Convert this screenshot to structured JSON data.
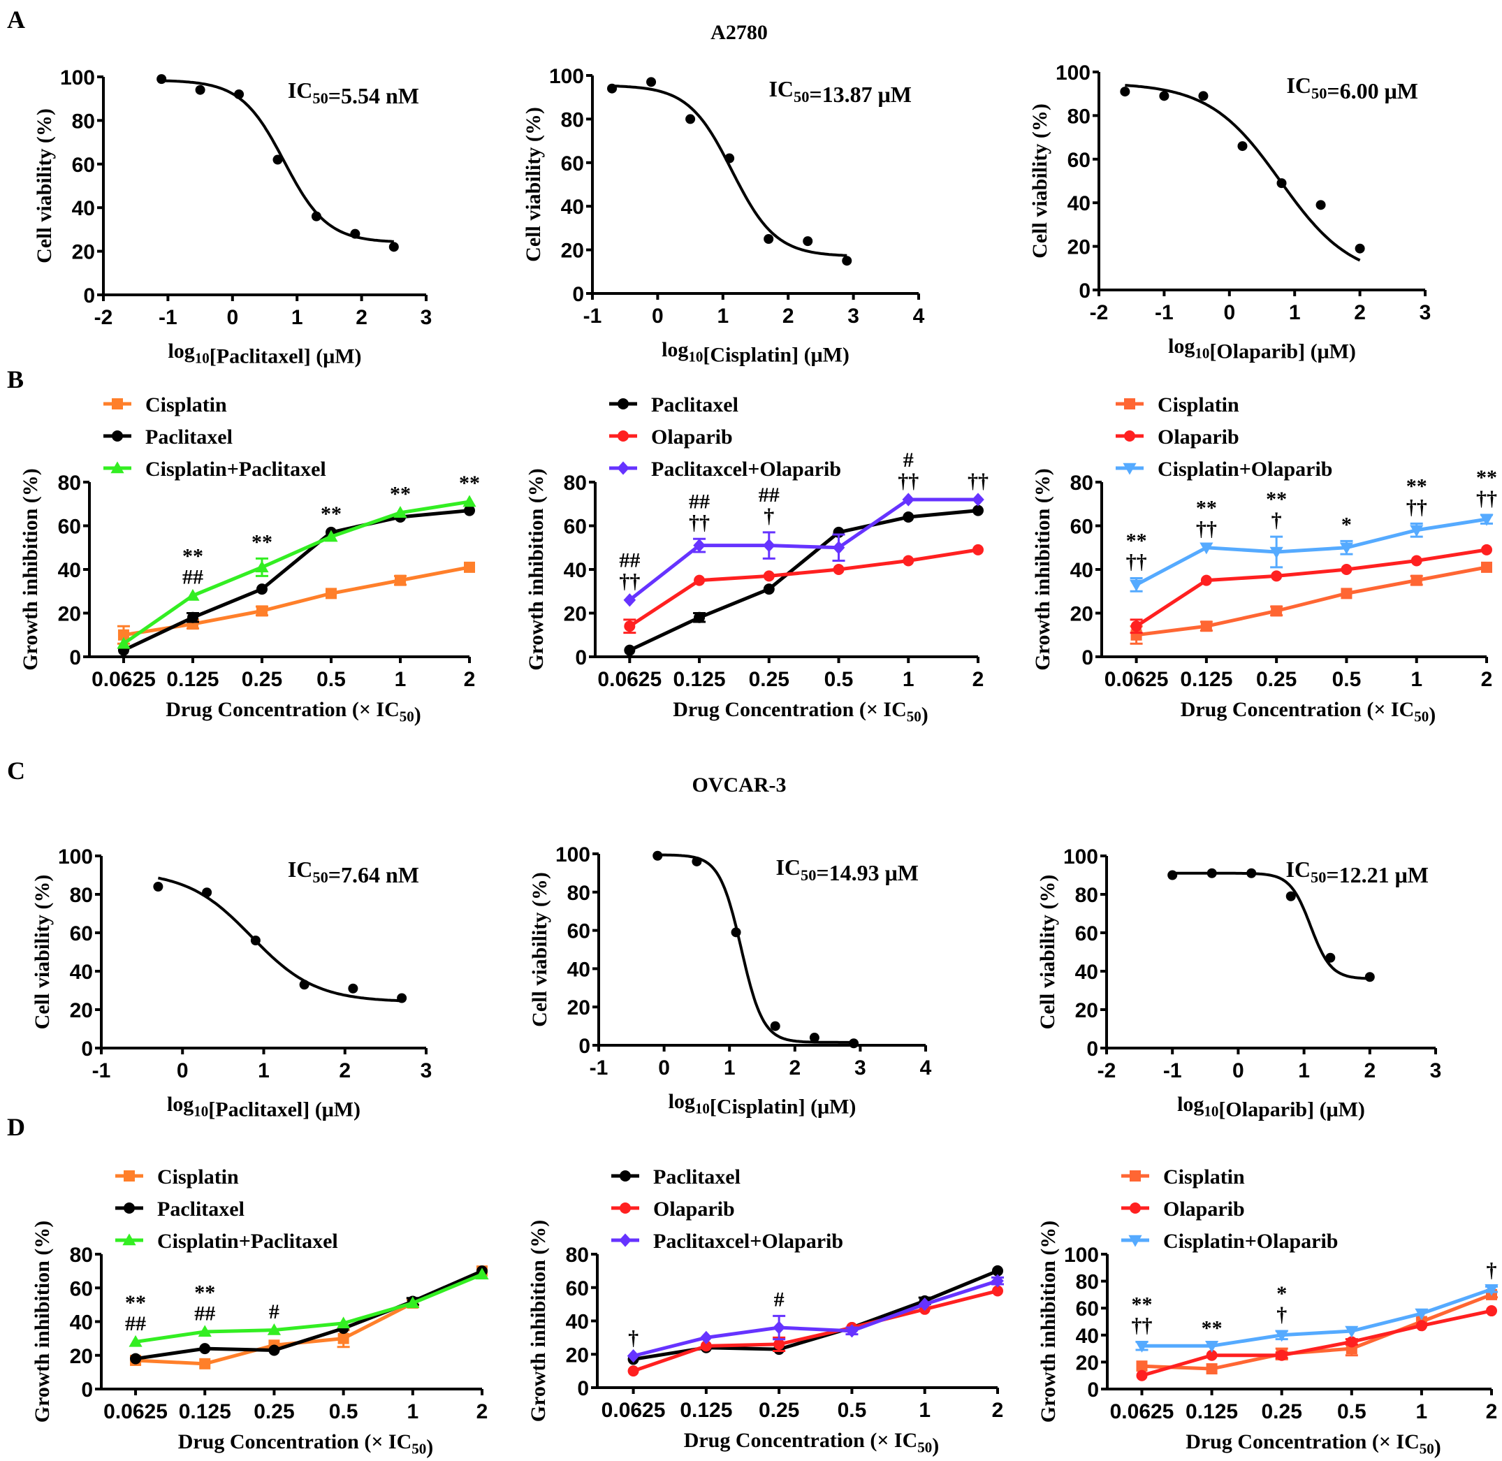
{
  "figure": {
    "panel_labels": [
      "A",
      "B",
      "C",
      "D"
    ],
    "row_titles": {
      "A": "A2780",
      "C": "OVCAR-3"
    }
  },
  "chart_data": [
    {
      "id": "A1",
      "panel": "A",
      "type": "scatter",
      "fit": "sigmoid",
      "title": "",
      "xlabel": "log10[Paclitaxel] (μM)",
      "ylabel": "Cell viability (%)",
      "xlim": [
        -2,
        3
      ],
      "ylim": [
        0,
        100
      ],
      "xticks": [
        -2,
        -1,
        0,
        1,
        2,
        3
      ],
      "yticks": [
        0,
        20,
        40,
        60,
        80,
        100
      ],
      "annotation": "IC50=5.54 nM",
      "x": [
        -1.1,
        -0.5,
        0.1,
        0.7,
        1.3,
        1.9,
        2.5
      ],
      "y": [
        99,
        94,
        92,
        62,
        36,
        28,
        22
      ],
      "curve": {
        "top": 98.5,
        "bottom": 24,
        "logx50": 0.8,
        "hill": 1.3
      }
    },
    {
      "id": "A2",
      "panel": "A",
      "type": "scatter",
      "fit": "sigmoid",
      "xlabel": "log10[Cisplatin] (μM)",
      "ylabel": "Cell viability (%)",
      "xlim": [
        -1,
        4
      ],
      "ylim": [
        0,
        100
      ],
      "xticks": [
        -1,
        0,
        1,
        2,
        3,
        4
      ],
      "yticks": [
        0,
        20,
        40,
        60,
        80,
        100
      ],
      "annotation": "IC50=13.87 μM",
      "x": [
        -0.7,
        -0.1,
        0.5,
        1.1,
        1.7,
        2.3,
        2.9
      ],
      "y": [
        94,
        97,
        80,
        62,
        25,
        24,
        15
      ],
      "curve": {
        "top": 95.5,
        "bottom": 17,
        "logx50": 1.14,
        "hill": 1.3
      }
    },
    {
      "id": "A3",
      "panel": "A",
      "type": "scatter",
      "fit": "sigmoid",
      "xlabel": "log10[Olaparib] (μM)",
      "ylabel": "Cell viability (%)",
      "xlim": [
        -2,
        3
      ],
      "ylim": [
        0,
        100
      ],
      "xticks": [
        -2,
        -1,
        0,
        1,
        2,
        3
      ],
      "yticks": [
        0,
        20,
        40,
        60,
        80,
        100
      ],
      "annotation": "IC50=6.00 μM",
      "x": [
        -1.6,
        -1.0,
        -0.4,
        0.2,
        0.8,
        1.4,
        2.0
      ],
      "y": [
        91,
        89,
        89,
        66,
        49,
        39,
        19
      ],
      "curve": {
        "top": 95,
        "bottom": 5,
        "logx50": 0.78,
        "hill": 0.8
      }
    },
    {
      "id": "B1",
      "panel": "B",
      "type": "line",
      "xlabel": "Drug Concentration (× IC50)",
      "ylabel": "Growth inhibition (%)",
      "categories": [
        "0.0625",
        "0.125",
        "0.25",
        "0.5",
        "1",
        "2"
      ],
      "ylim": [
        0,
        80
      ],
      "yticks": [
        0,
        20,
        40,
        60,
        80
      ],
      "legend": "top-left",
      "series": [
        {
          "name": "Cisplatin",
          "color": "#ff7f2a",
          "marker": "square",
          "values": [
            10,
            15,
            21,
            29,
            35,
            41
          ],
          "err": [
            4,
            2,
            2,
            1,
            2,
            1
          ]
        },
        {
          "name": "Paclitaxel",
          "color": "#000000",
          "marker": "circle",
          "values": [
            3,
            18,
            31,
            57,
            64,
            67
          ],
          "err": [
            1,
            2,
            1,
            1,
            1,
            1
          ]
        },
        {
          "name": "Cisplatin+Paclitaxel",
          "color": "#33ee22",
          "marker": "triangle-up",
          "values": [
            6,
            28,
            41,
            55,
            66,
            71
          ],
          "err": [
            1,
            1,
            4,
            1,
            1,
            1
          ]
        }
      ],
      "annotations": [
        {
          "category": "0.125",
          "lines": [
            "**",
            "##"
          ]
        },
        {
          "category": "0.25",
          "lines": [
            "**"
          ]
        },
        {
          "category": "0.5",
          "lines": [
            "**"
          ]
        },
        {
          "category": "1",
          "lines": [
            "**"
          ]
        },
        {
          "category": "2",
          "lines": [
            "**"
          ]
        }
      ]
    },
    {
      "id": "B2",
      "panel": "B",
      "type": "line",
      "xlabel": "Drug Concentration (× IC50)",
      "ylabel": "Growth inhibition (%)",
      "categories": [
        "0.0625",
        "0.125",
        "0.25",
        "0.5",
        "1",
        "2"
      ],
      "ylim": [
        0,
        80
      ],
      "yticks": [
        0,
        20,
        40,
        60,
        80
      ],
      "legend": "top-left",
      "series": [
        {
          "name": "Paclitaxel",
          "color": "#000000",
          "marker": "circle",
          "values": [
            3,
            18,
            31,
            57,
            64,
            67
          ],
          "err": [
            1,
            2,
            1,
            1,
            1,
            1
          ]
        },
        {
          "name": "Olaparib",
          "color": "#ff2020",
          "marker": "circle",
          "values": [
            14,
            35,
            37,
            40,
            44,
            49
          ],
          "err": [
            3,
            1,
            1,
            1,
            1,
            1
          ]
        },
        {
          "name": "Paclitaxcel+Olaparib",
          "color": "#6633ff",
          "marker": "diamond",
          "values": [
            26,
            51,
            51,
            50,
            72,
            72
          ],
          "err": [
            1,
            3,
            6,
            6,
            1,
            1
          ]
        }
      ],
      "annotations": [
        {
          "category": "0.0625",
          "lines": [
            "##",
            "††"
          ]
        },
        {
          "category": "0.125",
          "lines": [
            "##",
            "††"
          ]
        },
        {
          "category": "0.25",
          "lines": [
            "##",
            "†"
          ]
        },
        {
          "category": "1",
          "lines": [
            "#",
            "††"
          ]
        },
        {
          "category": "2",
          "lines": [
            "††"
          ]
        }
      ]
    },
    {
      "id": "B3",
      "panel": "B",
      "type": "line",
      "xlabel": "Drug Concentration (× IC50)",
      "ylabel": "Growth inhibition (%)",
      "categories": [
        "0.0625",
        "0.125",
        "0.25",
        "0.5",
        "1",
        "2"
      ],
      "ylim": [
        0,
        80
      ],
      "yticks": [
        0,
        20,
        40,
        60,
        80
      ],
      "legend": "top-left",
      "series": [
        {
          "name": "Cisplatin",
          "color": "#ff6633",
          "marker": "square",
          "values": [
            10,
            14,
            21,
            29,
            35,
            41
          ],
          "err": [
            4,
            2,
            2,
            1,
            2,
            1
          ]
        },
        {
          "name": "Olaparib",
          "color": "#ff2020",
          "marker": "circle",
          "values": [
            14,
            35,
            37,
            40,
            44,
            49
          ],
          "err": [
            3,
            1,
            1,
            1,
            1,
            1
          ]
        },
        {
          "name": "Cisplatin+Olaparib",
          "color": "#55aaff",
          "marker": "triangle-down",
          "values": [
            33,
            50,
            48,
            50,
            58,
            63
          ],
          "err": [
            3,
            1,
            7,
            3,
            3,
            2
          ]
        }
      ],
      "annotations": [
        {
          "category": "0.0625",
          "lines": [
            "**",
            "††"
          ]
        },
        {
          "category": "0.125",
          "lines": [
            "**",
            "††"
          ]
        },
        {
          "category": "0.25",
          "lines": [
            "**",
            "†"
          ]
        },
        {
          "category": "0.5",
          "lines": [
            "*"
          ]
        },
        {
          "category": "1",
          "lines": [
            "**",
            "††"
          ]
        },
        {
          "category": "2",
          "lines": [
            "**",
            "††"
          ]
        }
      ]
    },
    {
      "id": "C1",
      "panel": "C",
      "type": "scatter",
      "fit": "sigmoid",
      "xlabel": "log10[Paclitaxel] (μM)",
      "ylabel": "Cell viability (%)",
      "xlim": [
        -1,
        3
      ],
      "ylim": [
        0,
        100
      ],
      "xticks": [
        -1,
        0,
        1,
        2,
        3
      ],
      "yticks": [
        0,
        20,
        40,
        60,
        80,
        100
      ],
      "annotation": "IC50=7.64 nM",
      "x": [
        -0.3,
        0.3,
        0.9,
        1.5,
        2.1,
        2.7
      ],
      "y": [
        84,
        81,
        56,
        33,
        31,
        26
      ],
      "curve": {
        "top": 92,
        "bottom": 24,
        "logx50": 0.85,
        "hill": 1.1
      }
    },
    {
      "id": "C2",
      "panel": "C",
      "type": "scatter",
      "fit": "sigmoid",
      "xlabel": "log10[Cisplatin] (μM)",
      "ylabel": "Cell viability (%)",
      "xlim": [
        -1,
        4
      ],
      "ylim": [
        0,
        100
      ],
      "xticks": [
        -1,
        0,
        1,
        2,
        3,
        4
      ],
      "yticks": [
        0,
        20,
        40,
        60,
        80,
        100
      ],
      "annotation": "IC50=14.93 μM",
      "x": [
        -0.1,
        0.5,
        1.1,
        1.7,
        2.3,
        2.9
      ],
      "y": [
        99,
        96,
        59,
        10,
        4,
        1
      ],
      "curve": {
        "top": 99.5,
        "bottom": 1.5,
        "logx50": 1.18,
        "hill": 2.6
      }
    },
    {
      "id": "C3",
      "panel": "C",
      "type": "scatter",
      "fit": "sigmoid",
      "xlabel": "log10[Olaparib] (μM)",
      "ylabel": "Cell viability (%)",
      "xlim": [
        -2,
        3
      ],
      "ylim": [
        0,
        100
      ],
      "xticks": [
        -2,
        -1,
        0,
        1,
        2,
        3
      ],
      "yticks": [
        0,
        20,
        40,
        60,
        80,
        100
      ],
      "annotation": "IC50=12.21 μM",
      "x": [
        -1.0,
        -0.4,
        0.2,
        0.8,
        1.4,
        2.0
      ],
      "y": [
        90,
        91,
        91,
        79,
        47,
        37
      ],
      "curve": {
        "top": 91,
        "bottom": 36,
        "logx50": 1.1,
        "hill": 2.8
      }
    },
    {
      "id": "D1",
      "panel": "D",
      "type": "line",
      "xlabel": "Drug Concentration (× IC50)",
      "ylabel": "Growth inhibition (%)",
      "categories": [
        "0.0625",
        "0.125",
        "0.25",
        "0.5",
        "1",
        "2"
      ],
      "ylim": [
        0,
        80
      ],
      "yticks": [
        0,
        20,
        40,
        60,
        80
      ],
      "legend": "top-left",
      "series": [
        {
          "name": "Cisplatin",
          "color": "#ff7f2a",
          "marker": "square",
          "values": [
            17,
            15,
            26,
            30,
            51,
            70
          ],
          "err": [
            1,
            1,
            1,
            5,
            2,
            1
          ]
        },
        {
          "name": "Paclitaxel",
          "color": "#000000",
          "marker": "circle",
          "values": [
            18,
            24,
            23,
            36,
            52,
            70
          ],
          "err": [
            1,
            1,
            1,
            1,
            2,
            1
          ]
        },
        {
          "name": "Cisplatin+Paclitaxel",
          "color": "#33ee22",
          "marker": "triangle-up",
          "values": [
            28,
            34,
            35,
            39,
            51,
            68
          ],
          "err": [
            1,
            1,
            1,
            1,
            1,
            1
          ]
        }
      ],
      "annotations": [
        {
          "category": "0.0625",
          "lines": [
            "**",
            "##"
          ]
        },
        {
          "category": "0.125",
          "lines": [
            "**",
            "##"
          ]
        },
        {
          "category": "0.25",
          "lines": [
            "#"
          ]
        }
      ]
    },
    {
      "id": "D2",
      "panel": "D",
      "type": "line",
      "xlabel": "Drug Concentration (× IC50)",
      "ylabel": "Growth inhibition (%)",
      "categories": [
        "0.0625",
        "0.125",
        "0.25",
        "0.5",
        "1",
        "2"
      ],
      "ylim": [
        0,
        80
      ],
      "yticks": [
        0,
        20,
        40,
        60,
        80
      ],
      "legend": "top-left",
      "series": [
        {
          "name": "Paclitaxel",
          "color": "#000000",
          "marker": "circle",
          "values": [
            17,
            24,
            23,
            36,
            52,
            70
          ],
          "err": [
            1,
            1,
            1,
            1,
            2,
            1
          ]
        },
        {
          "name": "Olaparib",
          "color": "#ff2020",
          "marker": "circle",
          "values": [
            10,
            25,
            26,
            36,
            47,
            58
          ],
          "err": [
            1,
            1,
            4,
            1,
            1,
            1
          ]
        },
        {
          "name": "Paclitaxcel+Olaparib",
          "color": "#6633ff",
          "marker": "diamond",
          "values": [
            19,
            30,
            36,
            34,
            50,
            64
          ],
          "err": [
            1,
            1,
            7,
            2,
            1,
            2
          ]
        }
      ],
      "annotations": [
        {
          "category": "0.0625",
          "lines": [
            "†"
          ]
        },
        {
          "category": "0.25",
          "lines": [
            "#"
          ]
        }
      ]
    },
    {
      "id": "D3",
      "panel": "D",
      "type": "line",
      "xlabel": "Drug Concentration (× IC50)",
      "ylabel": "Growth inhibition (%)",
      "categories": [
        "0.0625",
        "0.125",
        "0.25",
        "0.5",
        "1",
        "2"
      ],
      "ylim": [
        0,
        100
      ],
      "yticks": [
        0,
        20,
        40,
        60,
        80,
        100
      ],
      "legend": "top-left",
      "series": [
        {
          "name": "Cisplatin",
          "color": "#ff6633",
          "marker": "square",
          "values": [
            17,
            15,
            26,
            30,
            50,
            70
          ],
          "err": [
            1,
            1,
            4,
            5,
            1,
            2
          ]
        },
        {
          "name": "Olaparib",
          "color": "#ff2020",
          "marker": "circle",
          "values": [
            10,
            25,
            25,
            35,
            47,
            58
          ],
          "err": [
            1,
            1,
            2,
            2,
            1,
            1
          ]
        },
        {
          "name": "Cisplatin+Olaparib",
          "color": "#55aaff",
          "marker": "triangle-down",
          "values": [
            32,
            32,
            40,
            43,
            56,
            74
          ],
          "err": [
            3,
            1,
            3,
            1,
            1,
            2
          ]
        }
      ],
      "annotations": [
        {
          "category": "0.0625",
          "lines": [
            "**",
            "††"
          ]
        },
        {
          "category": "0.125",
          "lines": [
            "**"
          ]
        },
        {
          "category": "0.25",
          "lines": [
            "*",
            "†"
          ]
        },
        {
          "category": "2",
          "lines": [
            "†"
          ]
        }
      ]
    }
  ]
}
